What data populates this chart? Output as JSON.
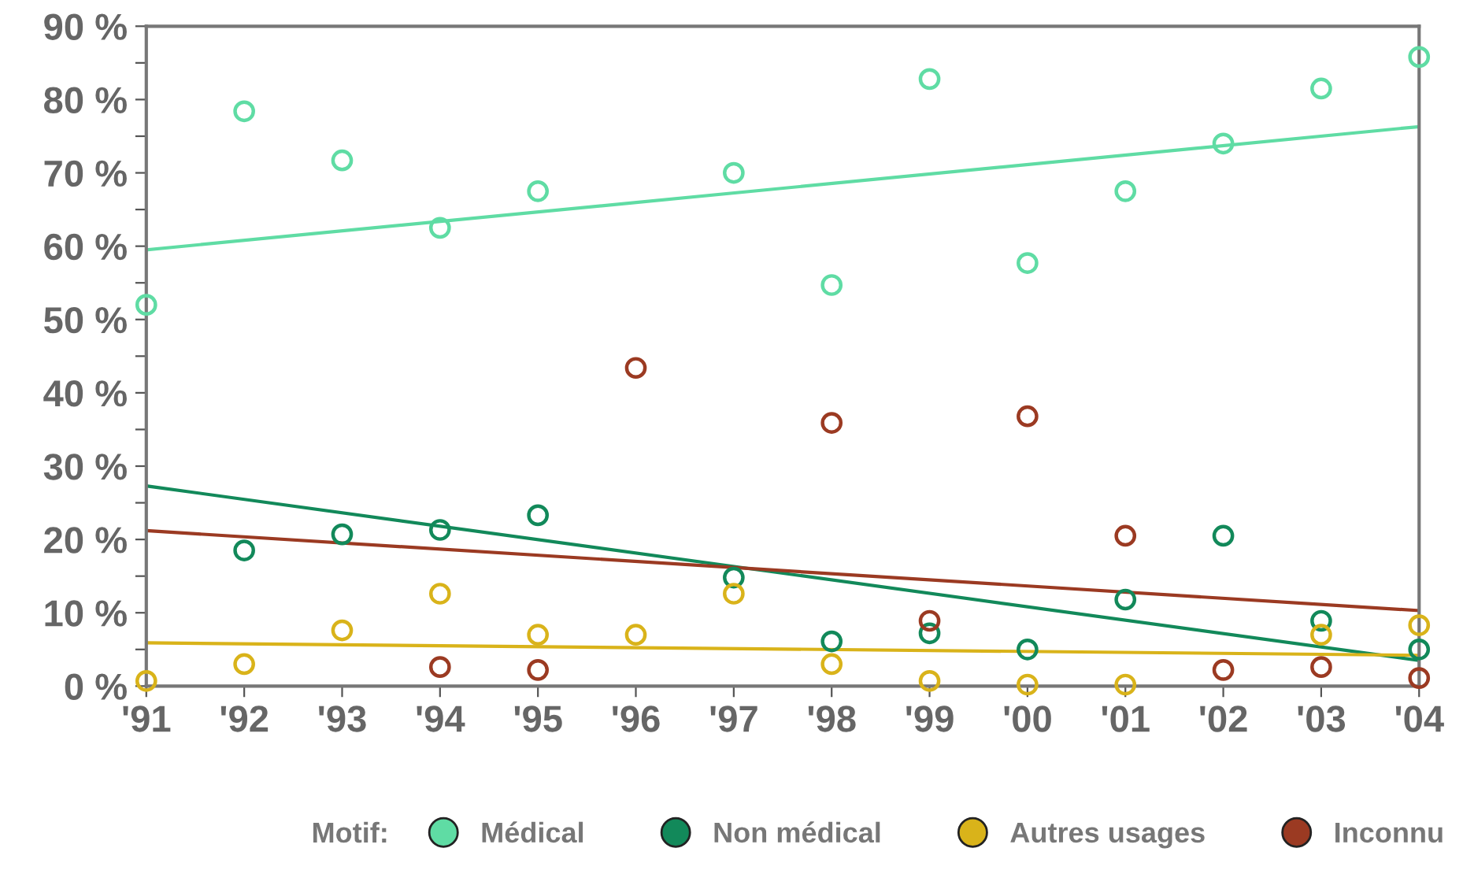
{
  "chart_data": {
    "type": "scatter",
    "categories": [
      "'91",
      "'92",
      "'93",
      "'94",
      "'95",
      "'96",
      "'97",
      "'98",
      "'99",
      "'00",
      "'01",
      "'02",
      "'03",
      "'04"
    ],
    "ylim": [
      0,
      90
    ],
    "yticks": [
      {
        "value": 0,
        "label": "0 %"
      },
      {
        "value": 5,
        "label": null
      },
      {
        "value": 10,
        "label": "10 %"
      },
      {
        "value": 15,
        "label": null
      },
      {
        "value": 20,
        "label": "20 %"
      },
      {
        "value": 25,
        "label": null
      },
      {
        "value": 30,
        "label": "30 %"
      },
      {
        "value": 35,
        "label": null
      },
      {
        "value": 40,
        "label": "40 %"
      },
      {
        "value": 45,
        "label": null
      },
      {
        "value": 50,
        "label": "50 %"
      },
      {
        "value": 55,
        "label": null
      },
      {
        "value": 60,
        "label": "60 %"
      },
      {
        "value": 65,
        "label": null
      },
      {
        "value": 70,
        "label": "70 %"
      },
      {
        "value": 75,
        "label": null
      },
      {
        "value": 80,
        "label": "80 %"
      },
      {
        "value": 85,
        "label": null
      },
      {
        "value": 90,
        "label": "90 %"
      }
    ],
    "legend_title": "Motif:",
    "legend": "bottom",
    "grid": false,
    "marker": "circle",
    "series": [
      {
        "name": "Médical",
        "color": "#5fdca4",
        "values": [
          52,
          78.4,
          71.7,
          62.5,
          67.5,
          null,
          70,
          54.7,
          82.8,
          57.7,
          67.5,
          74,
          81.5,
          85.8
        ]
      },
      {
        "name": "Non médical",
        "color": "#12895a",
        "values": [
          null,
          18.5,
          20.7,
          21.3,
          23.3,
          null,
          14.8,
          6.1,
          7.2,
          5,
          11.8,
          20.5,
          8.9,
          5
        ]
      },
      {
        "name": "Autres usages",
        "color": "#d9b31a",
        "values": [
          0.7,
          3,
          7.6,
          12.6,
          7,
          7,
          12.6,
          3,
          0.7,
          0.2,
          0.2,
          null,
          7,
          8.3
        ]
      },
      {
        "name": "Inconnu",
        "color": "#9b3a22",
        "values": [
          null,
          null,
          null,
          2.6,
          2.2,
          43.4,
          null,
          35.9,
          8.9,
          36.8,
          20.5,
          2.2,
          2.6,
          1.1
        ]
      },
      {
        "type": "line",
        "marker": "none",
        "color": "#5fdca4",
        "values": [
          59.5,
          null,
          null,
          null,
          null,
          null,
          null,
          null,
          null,
          null,
          null,
          null,
          null,
          76.3
        ]
      },
      {
        "type": "line",
        "marker": "none",
        "color": "#12895a",
        "values": [
          27.3,
          null,
          null,
          null,
          null,
          null,
          null,
          null,
          null,
          null,
          null,
          null,
          null,
          3.5
        ]
      },
      {
        "type": "line",
        "marker": "none",
        "color": "#d9b31a",
        "values": [
          5.9,
          null,
          null,
          null,
          null,
          null,
          null,
          null,
          null,
          null,
          null,
          null,
          null,
          4.2
        ]
      },
      {
        "type": "line",
        "marker": "none",
        "color": "#9b3a22",
        "values": [
          21.2,
          null,
          null,
          null,
          null,
          null,
          null,
          null,
          null,
          null,
          null,
          null,
          null,
          10.3
        ]
      }
    ]
  }
}
